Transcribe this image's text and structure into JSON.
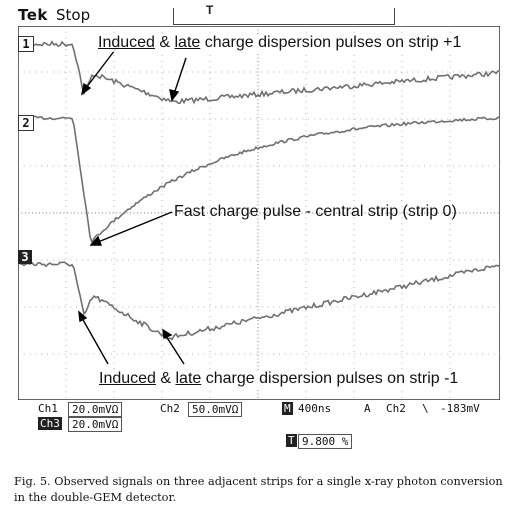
{
  "header": {
    "brand": "Tek",
    "status": "Stop",
    "trigger_marker": "T"
  },
  "channel_markers": {
    "ch1": "1",
    "ch2": "2",
    "ch3": "3"
  },
  "annotations": {
    "top": {
      "w1": "Induced",
      "amp": " & ",
      "w2": "late",
      "rest": " charge dispersion pulses on strip +1"
    },
    "middle": {
      "text": "Fast charge pulse - central strip (strip 0)"
    },
    "bottom": {
      "w1": "Induced",
      "amp": " & ",
      "w2": "late",
      "rest": " charge dispersion pulses on strip -1"
    }
  },
  "readout": {
    "ch1_label": "Ch1",
    "ch1_scale": "20.0mVΩ",
    "ch2_label": "Ch2",
    "ch2_scale": "50.0mVΩ",
    "timebase_label": "M",
    "timebase": "400ns",
    "trigger_label": "A",
    "trigger_ch": "Ch2",
    "trigger_slope": "\\",
    "trigger_level": "-183mV",
    "ch3_label": "Ch3",
    "ch3_scale": "20.0mVΩ",
    "trigger_pos_icon": "T",
    "trigger_pos": "9.800 %"
  },
  "caption": "Fig. 5.  Observed signals on three adjacent strips for a single x-ray photon conversion in the double-GEM detector."
}
